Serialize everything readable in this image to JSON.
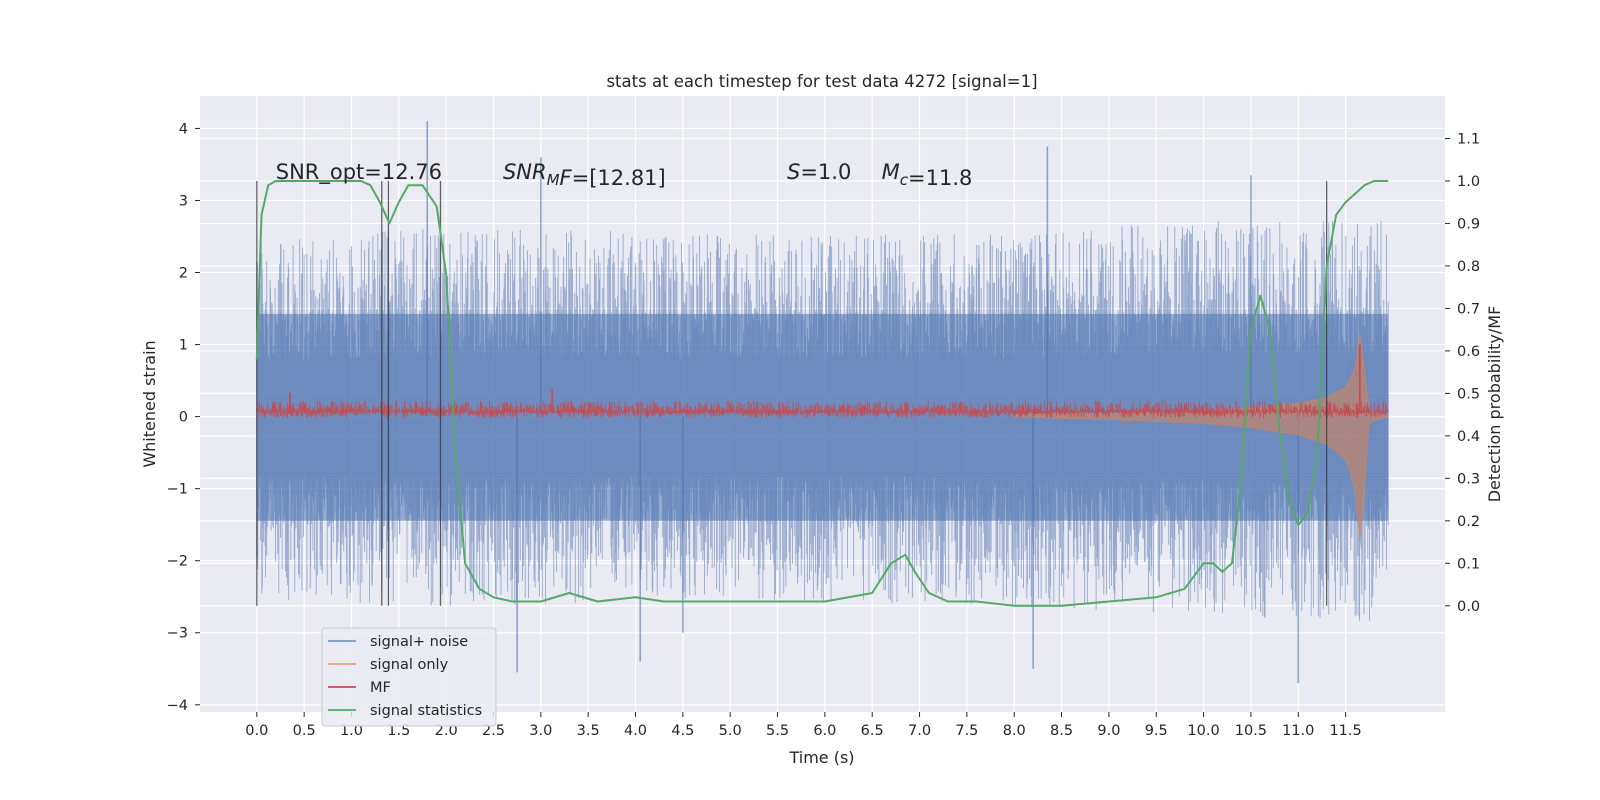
{
  "chart_data": {
    "type": "line",
    "title": "stats at each timestep for test data 4272 [signal=1]",
    "xlabel": "Time (s)",
    "ylabel": "Whitened strain",
    "y2label": "Detection probability/MF",
    "xlim": [
      -0.6,
      12.55
    ],
    "ylim": [
      -4.1,
      4.45
    ],
    "y2lim": [
      -0.25,
      1.2
    ],
    "grid": true,
    "legend_position": "lower-left",
    "x_ticks": [
      0.0,
      0.5,
      1.0,
      1.5,
      2.0,
      2.5,
      3.0,
      3.5,
      4.0,
      4.5,
      5.0,
      5.5,
      6.0,
      6.5,
      7.0,
      7.5,
      8.0,
      8.5,
      9.0,
      9.5,
      10.0,
      10.5,
      11.0,
      11.5
    ],
    "x_tick_labels": [
      "0.0",
      "0.5",
      "1.0",
      "1.5",
      "2.0",
      "2.5",
      "3.0",
      "3.5",
      "4.0",
      "4.5",
      "5.0",
      "5.5",
      "6.0",
      "6.5",
      "7.0",
      "7.5",
      "8.0",
      "8.5",
      "9.0",
      "9.5",
      "10.0",
      "10.5",
      "11.0",
      "11.5"
    ],
    "y_ticks": [
      4,
      3,
      2,
      1,
      0,
      -1,
      -2,
      -3,
      -4
    ],
    "y_tick_labels": [
      "4",
      "3",
      "2",
      "1",
      "0",
      "−1",
      "−2",
      "−3",
      "−4"
    ],
    "y2_ticks": [
      1.1,
      1.0,
      0.9,
      0.8,
      0.7,
      0.6,
      0.5,
      0.4,
      0.3,
      0.2,
      0.1,
      0.0
    ],
    "y2_tick_labels": [
      "1.1",
      "1.0",
      "0.9",
      "0.8",
      "0.7",
      "0.6",
      "0.5",
      "0.4",
      "0.3",
      "0.2",
      "0.1",
      "0.0"
    ],
    "annotations": [
      {
        "prefix": "SNR_opt",
        "sub": "",
        "value": "=12.76",
        "italic": false,
        "x": 0.2
      },
      {
        "prefix": "SNR",
        "sub": "M",
        "suffix": "F",
        "value": "=[12.81]",
        "italic": true,
        "x": 2.6
      },
      {
        "prefix": "S",
        "sub": "",
        "value": "=1.0",
        "italic": true,
        "x": 5.6
      },
      {
        "prefix": "M",
        "sub": "c",
        "value": "=11.8",
        "italic": true,
        "x": 6.6
      }
    ],
    "vertical_markers": [
      0.0,
      1.32,
      1.39,
      1.94,
      11.3
    ],
    "series": [
      {
        "name": "signal+ noise",
        "color": "#4c72b0",
        "axis": "left",
        "style": "dense-noise",
        "x_range": [
          0.0,
          11.95
        ],
        "envelope_upper": [
          [
            0.0,
            2.2
          ],
          [
            2.0,
            2.4
          ],
          [
            5.0,
            2.3
          ],
          [
            8.0,
            2.3
          ],
          [
            10.0,
            2.5
          ],
          [
            11.5,
            2.5
          ],
          [
            11.95,
            2.5
          ]
        ],
        "envelope_lower": [
          [
            0.0,
            -2.3
          ],
          [
            2.0,
            -2.4
          ],
          [
            5.0,
            -2.3
          ],
          [
            8.0,
            -2.4
          ],
          [
            10.0,
            -2.5
          ],
          [
            11.5,
            -2.6
          ],
          [
            11.95,
            -2.6
          ]
        ],
        "notable_peaks": [
          [
            1.8,
            4.1
          ],
          [
            8.35,
            3.75
          ],
          [
            3.0,
            3.6
          ],
          [
            10.5,
            3.35
          ],
          [
            11.0,
            -3.7
          ],
          [
            2.75,
            -3.55
          ],
          [
            8.2,
            -3.5
          ],
          [
            4.05,
            -3.4
          ],
          [
            4.5,
            -3.0
          ]
        ]
      },
      {
        "name": "signal only",
        "color": "#dd8452",
        "axis": "left",
        "style": "chirp",
        "x": [
          8.0,
          9.0,
          10.0,
          10.5,
          11.0,
          11.3,
          11.5,
          11.6,
          11.65,
          11.7,
          11.75,
          11.95
        ],
        "amplitude": [
          0.01,
          0.05,
          0.11,
          0.18,
          0.3,
          0.45,
          0.7,
          1.2,
          2.05,
          1.2,
          0.1,
          0.0
        ]
      },
      {
        "name": "MF",
        "color": "#c44e52",
        "axis": "left",
        "style": "noisy-band",
        "x_range": [
          0.0,
          11.95
        ],
        "center": 0.07,
        "band": [
          -0.02,
          0.22
        ],
        "spikes": [
          [
            0.35,
            0.33
          ],
          [
            3.12,
            0.38
          ],
          [
            11.65,
            1.0
          ]
        ]
      },
      {
        "name": "signal statistics",
        "color": "#55a868",
        "axis": "right",
        "x": [
          0.0,
          0.05,
          0.12,
          0.2,
          0.35,
          0.6,
          0.9,
          1.1,
          1.2,
          1.3,
          1.4,
          1.5,
          1.6,
          1.75,
          1.9,
          2.0,
          2.1,
          2.2,
          2.35,
          2.5,
          2.7,
          3.0,
          3.3,
          3.6,
          4.0,
          4.3,
          4.6,
          5.0,
          5.5,
          6.0,
          6.5,
          6.7,
          6.85,
          6.95,
          7.1,
          7.3,
          7.6,
          8.0,
          8.5,
          9.0,
          9.5,
          9.8,
          10.0,
          10.1,
          10.2,
          10.3,
          10.4,
          10.5,
          10.6,
          10.7,
          10.8,
          10.9,
          11.0,
          11.1,
          11.2,
          11.3,
          11.4,
          11.5,
          11.6,
          11.7,
          11.8,
          11.95
        ],
        "y": [
          0.58,
          0.92,
          0.99,
          1.0,
          1.0,
          1.0,
          1.0,
          1.0,
          0.99,
          0.95,
          0.9,
          0.95,
          0.99,
          0.99,
          0.94,
          0.78,
          0.35,
          0.1,
          0.04,
          0.02,
          0.01,
          0.01,
          0.03,
          0.01,
          0.02,
          0.01,
          0.01,
          0.01,
          0.01,
          0.01,
          0.03,
          0.1,
          0.12,
          0.08,
          0.03,
          0.01,
          0.01,
          0.0,
          0.0,
          0.01,
          0.02,
          0.04,
          0.1,
          0.1,
          0.08,
          0.1,
          0.3,
          0.65,
          0.73,
          0.65,
          0.42,
          0.25,
          0.19,
          0.22,
          0.35,
          0.8,
          0.92,
          0.95,
          0.97,
          0.99,
          1.0,
          1.0
        ]
      }
    ]
  }
}
